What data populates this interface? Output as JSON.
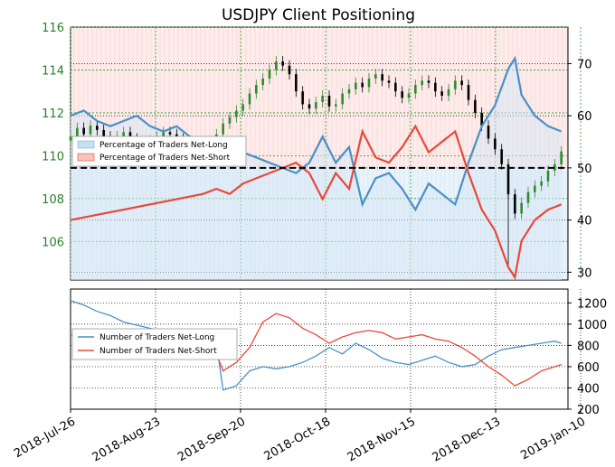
{
  "chart_data": [
    {
      "type": "line",
      "title": "USDJPY Client Positioning",
      "xlabel": "",
      "ylabel": "",
      "x_tick_labels": [
        "2018-Jul-26",
        "2018-Aug-23",
        "2018-Sep-20",
        "2018-Oct-18",
        "2018-Nov-15",
        "2018-Dec-13",
        "2019-Jan-10"
      ],
      "price_axis": {
        "side": "left",
        "ticks": [
          106,
          108,
          110,
          112,
          114,
          116
        ],
        "range": [
          104.2,
          116
        ]
      },
      "percent_axis": {
        "side": "right",
        "ticks": [
          30,
          40,
          50,
          60,
          70
        ],
        "range": [
          28.5,
          77
        ]
      },
      "threshold_line": 50,
      "grid": true,
      "legend": {
        "placement": "left",
        "entries": [
          "Percentage of Traders Net-Long",
          "Percentage of Traders Net-Short"
        ]
      },
      "colors": {
        "net_long": "#4a90c8",
        "net_short": "#e8493a",
        "candle_up": "#2e8b2e",
        "candle_down": "#000000",
        "price_tick": "#2a7d2a"
      },
      "candles": {
        "description": "USDJPY daily candles, approximate close",
        "series": [
          [
            0,
            110.9
          ],
          [
            2,
            111.3
          ],
          [
            4,
            111.0
          ],
          [
            6,
            111.4
          ],
          [
            8,
            111.2
          ],
          [
            10,
            110.9
          ],
          [
            12,
            110.8
          ],
          [
            14,
            110.9
          ],
          [
            16,
            111.1
          ],
          [
            18,
            110.8
          ],
          [
            20,
            110.2
          ],
          [
            22,
            110.4
          ],
          [
            24,
            110.7
          ],
          [
            26,
            110.9
          ],
          [
            28,
            111.1
          ],
          [
            30,
            111.0
          ],
          [
            32,
            110.8
          ],
          [
            34,
            110.4
          ],
          [
            36,
            110.0
          ],
          [
            38,
            109.7
          ],
          [
            40,
            110.2
          ],
          [
            42,
            110.6
          ],
          [
            44,
            111.0
          ],
          [
            46,
            111.5
          ],
          [
            48,
            111.8
          ],
          [
            50,
            112.1
          ],
          [
            52,
            112.4
          ],
          [
            54,
            112.9
          ],
          [
            56,
            113.3
          ],
          [
            58,
            113.6
          ],
          [
            60,
            114.0
          ],
          [
            62,
            114.4
          ],
          [
            64,
            114.2
          ],
          [
            66,
            113.8
          ],
          [
            68,
            113.0
          ],
          [
            70,
            112.4
          ],
          [
            72,
            112.2
          ],
          [
            74,
            112.5
          ],
          [
            76,
            112.8
          ],
          [
            78,
            112.3
          ],
          [
            80,
            112.4
          ],
          [
            82,
            112.9
          ],
          [
            84,
            113.1
          ],
          [
            86,
            113.4
          ],
          [
            88,
            113.2
          ],
          [
            90,
            113.6
          ],
          [
            92,
            113.8
          ],
          [
            94,
            113.5
          ],
          [
            96,
            113.4
          ],
          [
            98,
            113.0
          ],
          [
            100,
            112.7
          ],
          [
            102,
            112.9
          ],
          [
            104,
            113.3
          ],
          [
            106,
            113.5
          ],
          [
            108,
            113.4
          ],
          [
            110,
            113.0
          ],
          [
            112,
            112.8
          ],
          [
            114,
            113.1
          ],
          [
            116,
            113.5
          ],
          [
            118,
            113.3
          ],
          [
            120,
            112.6
          ],
          [
            122,
            112.0
          ],
          [
            124,
            111.4
          ],
          [
            126,
            110.8
          ],
          [
            128,
            110.3
          ],
          [
            130,
            109.6
          ],
          [
            132,
            108.2
          ],
          [
            134,
            107.3
          ],
          [
            136,
            107.8
          ],
          [
            138,
            108.3
          ],
          [
            140,
            108.6
          ],
          [
            142,
            108.8
          ],
          [
            144,
            109.3
          ],
          [
            146,
            109.6
          ],
          [
            148,
            110.2
          ]
        ]
      },
      "net_long_pct": [
        [
          0,
          60
        ],
        [
          4,
          61
        ],
        [
          8,
          59
        ],
        [
          12,
          58
        ],
        [
          16,
          59
        ],
        [
          20,
          60
        ],
        [
          24,
          58
        ],
        [
          28,
          57
        ],
        [
          32,
          58
        ],
        [
          36,
          56
        ],
        [
          40,
          55
        ],
        [
          44,
          54
        ],
        [
          48,
          55
        ],
        [
          52,
          53
        ],
        [
          56,
          52
        ],
        [
          60,
          51
        ],
        [
          64,
          50
        ],
        [
          68,
          49
        ],
        [
          72,
          51
        ],
        [
          76,
          56
        ],
        [
          80,
          51
        ],
        [
          84,
          54
        ],
        [
          88,
          43
        ],
        [
          92,
          48
        ],
        [
          96,
          49
        ],
        [
          100,
          46
        ],
        [
          104,
          42
        ],
        [
          108,
          47
        ],
        [
          112,
          45
        ],
        [
          116,
          43
        ],
        [
          120,
          51
        ],
        [
          124,
          58
        ],
        [
          128,
          62
        ],
        [
          132,
          69
        ],
        [
          134,
          71
        ],
        [
          136,
          64
        ],
        [
          140,
          60
        ],
        [
          144,
          58
        ],
        [
          148,
          57
        ]
      ],
      "net_short_pct": [
        [
          0,
          40
        ],
        [
          40,
          45
        ],
        [
          44,
          46
        ],
        [
          48,
          45
        ],
        [
          52,
          47
        ],
        [
          56,
          48
        ],
        [
          60,
          49
        ],
        [
          64,
          50
        ],
        [
          68,
          51
        ],
        [
          72,
          49
        ],
        [
          76,
          44
        ],
        [
          80,
          49
        ],
        [
          84,
          46
        ],
        [
          88,
          57
        ],
        [
          92,
          52
        ],
        [
          96,
          51
        ],
        [
          100,
          54
        ],
        [
          104,
          58
        ],
        [
          108,
          53
        ],
        [
          112,
          55
        ],
        [
          116,
          57
        ],
        [
          120,
          49
        ],
        [
          124,
          42
        ],
        [
          128,
          38
        ],
        [
          132,
          31
        ],
        [
          134,
          29
        ],
        [
          136,
          36
        ],
        [
          140,
          40
        ],
        [
          144,
          42
        ],
        [
          148,
          43
        ]
      ]
    },
    {
      "type": "line",
      "title": "",
      "count_axis": {
        "side": "right",
        "ticks": [
          200,
          400,
          600,
          800,
          1000,
          1200
        ],
        "range": [
          200,
          1330
        ]
      },
      "legend": {
        "placement": "left",
        "entries": [
          "Number of Traders Net-Long",
          "Number of Traders Net-Short"
        ]
      },
      "net_long_count": [
        [
          0,
          1220
        ],
        [
          4,
          1180
        ],
        [
          8,
          1120
        ],
        [
          12,
          1080
        ],
        [
          16,
          1020
        ],
        [
          20,
          990
        ],
        [
          24,
          960
        ],
        [
          28,
          930
        ],
        [
          32,
          900
        ],
        [
          36,
          880
        ],
        [
          40,
          860
        ],
        [
          44,
          820
        ],
        [
          46,
          380
        ],
        [
          50,
          420
        ],
        [
          54,
          560
        ],
        [
          58,
          600
        ],
        [
          62,
          580
        ],
        [
          66,
          600
        ],
        [
          70,
          640
        ],
        [
          74,
          700
        ],
        [
          78,
          780
        ],
        [
          82,
          720
        ],
        [
          86,
          820
        ],
        [
          90,
          760
        ],
        [
          94,
          680
        ],
        [
          98,
          640
        ],
        [
          102,
          620
        ],
        [
          106,
          660
        ],
        [
          110,
          700
        ],
        [
          114,
          640
        ],
        [
          118,
          600
        ],
        [
          122,
          620
        ],
        [
          126,
          700
        ],
        [
          130,
          760
        ],
        [
          134,
          780
        ],
        [
          138,
          800
        ],
        [
          142,
          820
        ],
        [
          146,
          840
        ],
        [
          148,
          820
        ]
      ],
      "net_short_count": [
        [
          0,
          900
        ],
        [
          4,
          880
        ],
        [
          8,
          860
        ],
        [
          12,
          840
        ],
        [
          16,
          820
        ],
        [
          20,
          800
        ],
        [
          24,
          780
        ],
        [
          28,
          760
        ],
        [
          32,
          740
        ],
        [
          36,
          720
        ],
        [
          40,
          700
        ],
        [
          44,
          720
        ],
        [
          46,
          560
        ],
        [
          50,
          640
        ],
        [
          54,
          780
        ],
        [
          58,
          1020
        ],
        [
          62,
          1100
        ],
        [
          66,
          1060
        ],
        [
          70,
          960
        ],
        [
          74,
          900
        ],
        [
          78,
          820
        ],
        [
          82,
          880
        ],
        [
          86,
          920
        ],
        [
          90,
          940
        ],
        [
          94,
          920
        ],
        [
          98,
          860
        ],
        [
          102,
          880
        ],
        [
          106,
          900
        ],
        [
          110,
          860
        ],
        [
          114,
          840
        ],
        [
          118,
          780
        ],
        [
          122,
          700
        ],
        [
          126,
          600
        ],
        [
          130,
          520
        ],
        [
          134,
          420
        ],
        [
          138,
          480
        ],
        [
          142,
          560
        ],
        [
          146,
          600
        ],
        [
          148,
          620
        ]
      ]
    }
  ]
}
